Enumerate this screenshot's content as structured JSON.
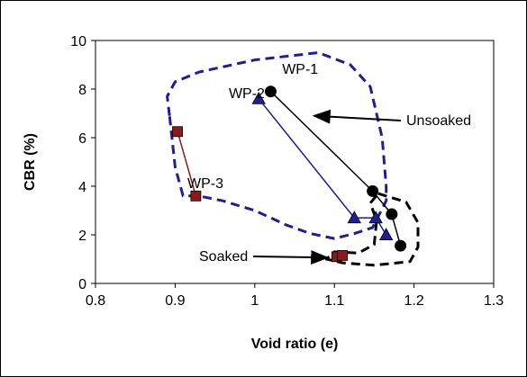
{
  "chart_data": {
    "type": "scatter",
    "xlabel": "Void ratio (e)",
    "ylabel": "CBR (%)",
    "xlim": [
      0.8,
      1.3
    ],
    "ylim": [
      0,
      10
    ],
    "xticks": [
      "0.8",
      "0.9",
      "1",
      "1.1",
      "1.2",
      "1.3"
    ],
    "yticks": [
      "0",
      "2",
      "4",
      "6",
      "8",
      "10"
    ],
    "grid": false,
    "series": [
      {
        "name": "WP-1",
        "marker": "circle",
        "color": "#000000",
        "line_color": "#000000",
        "x": [
          1.02,
          1.148,
          1.172,
          1.183
        ],
        "y": [
          7.9,
          3.8,
          2.85,
          1.55
        ]
      },
      {
        "name": "WP-2",
        "marker": "triangle",
        "color": "#1F1F8F",
        "line_color": "#1F1F8F",
        "x": [
          1.005,
          1.125,
          1.152,
          1.165
        ],
        "y": [
          7.6,
          2.7,
          2.7,
          2.0
        ]
      },
      {
        "name": "WP-3",
        "marker": "square",
        "color": "#8B1A1A",
        "line_color": "#8B1A1A",
        "x": [
          0.903,
          0.926
        ],
        "y": [
          6.25,
          3.6
        ]
      },
      {
        "name": "",
        "marker": "square",
        "color": "#8B1A1A",
        "line_color": "none",
        "x": [
          1.103,
          1.11
        ],
        "y": [
          1.1,
          1.15
        ]
      }
    ],
    "region_labels": [
      {
        "text": "Unsoaked",
        "arrow_to": [
          1.07,
          6.9
        ]
      },
      {
        "text": "Soaked",
        "arrow_to": [
          1.1,
          1.1
        ]
      }
    ],
    "unsoaked_region": [
      [
        0.893,
        6.9
      ],
      [
        0.89,
        7.7
      ],
      [
        0.9,
        8.3
      ],
      [
        0.93,
        8.7
      ],
      [
        1.0,
        9.2
      ],
      [
        1.08,
        9.5
      ],
      [
        1.12,
        9.0
      ],
      [
        1.145,
        8.1
      ],
      [
        1.16,
        6.0
      ],
      [
        1.165,
        4.0
      ],
      [
        1.165,
        3.4
      ],
      [
        1.148,
        2.3
      ],
      [
        1.125,
        2.05
      ],
      [
        1.1,
        1.85
      ],
      [
        1.07,
        2.05
      ],
      [
        1.04,
        2.4
      ],
      [
        1.0,
        3.0
      ],
      [
        0.96,
        3.4
      ],
      [
        0.93,
        3.6
      ],
      [
        0.91,
        3.6
      ],
      [
        0.9,
        4.8
      ],
      [
        0.893,
        6.9
      ]
    ],
    "soaked_region": [
      [
        1.155,
        3.7
      ],
      [
        1.19,
        3.35
      ],
      [
        1.205,
        2.5
      ],
      [
        1.205,
        1.5
      ],
      [
        1.195,
        0.9
      ],
      [
        1.15,
        0.75
      ],
      [
        1.11,
        0.85
      ],
      [
        1.09,
        1.0
      ],
      [
        1.1,
        1.3
      ],
      [
        1.13,
        1.25
      ],
      [
        1.15,
        1.6
      ],
      [
        1.153,
        2.6
      ],
      [
        1.145,
        3.3
      ],
      [
        1.155,
        3.7
      ]
    ],
    "annotations": [
      {
        "text": "WP-1",
        "x": 1.057,
        "y": 8.85
      },
      {
        "text": "WP-2",
        "x": 0.99,
        "y": 7.85
      },
      {
        "text": "WP-3",
        "x": 0.938,
        "y": 4.15
      }
    ]
  }
}
